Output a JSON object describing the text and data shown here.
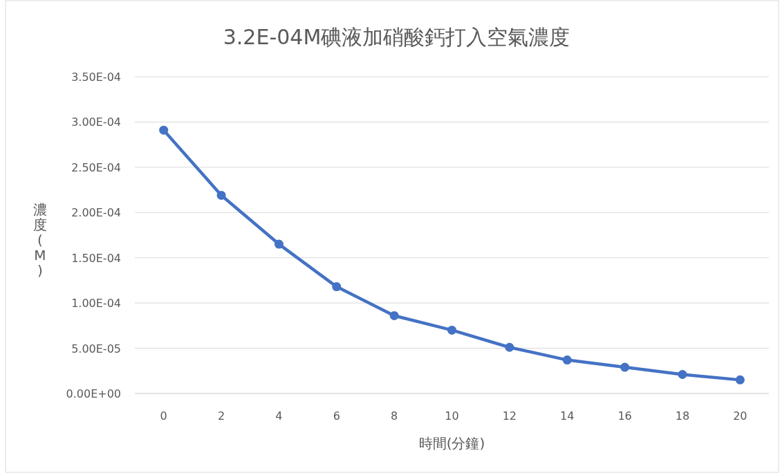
{
  "chart_data": {
    "type": "line",
    "title": "3.2E-04M碘液加硝酸鈣打入空氣濃度",
    "xlabel": "時間(分鐘)",
    "ylabel": "濃度(M)",
    "categories": [
      "0",
      "2",
      "4",
      "6",
      "8",
      "10",
      "12",
      "14",
      "16",
      "18",
      "20"
    ],
    "series": [
      {
        "color": "#4472c4",
        "values": [
          0.000291,
          0.000219,
          0.000165,
          0.000118,
          8.6e-05,
          7e-05,
          5.1e-05,
          3.7e-05,
          2.9e-05,
          2.1e-05,
          1.5e-05
        ]
      }
    ],
    "ylim": [
      0,
      0.00035
    ],
    "yticks": [
      {
        "value": 0,
        "label": "0.00E+00"
      },
      {
        "value": 5e-05,
        "label": "5.00E-05"
      },
      {
        "value": 0.0001,
        "label": "1.00E-04"
      },
      {
        "value": 0.00015,
        "label": "1.50E-04"
      },
      {
        "value": 0.0002,
        "label": "2.00E-04"
      },
      {
        "value": 0.00025,
        "label": "2.50E-04"
      },
      {
        "value": 0.0003,
        "label": "3.00E-04"
      },
      {
        "value": 0.00035,
        "label": "3.50E-04"
      }
    ],
    "grid": "y",
    "marker": "circle",
    "line_style": "solid"
  }
}
